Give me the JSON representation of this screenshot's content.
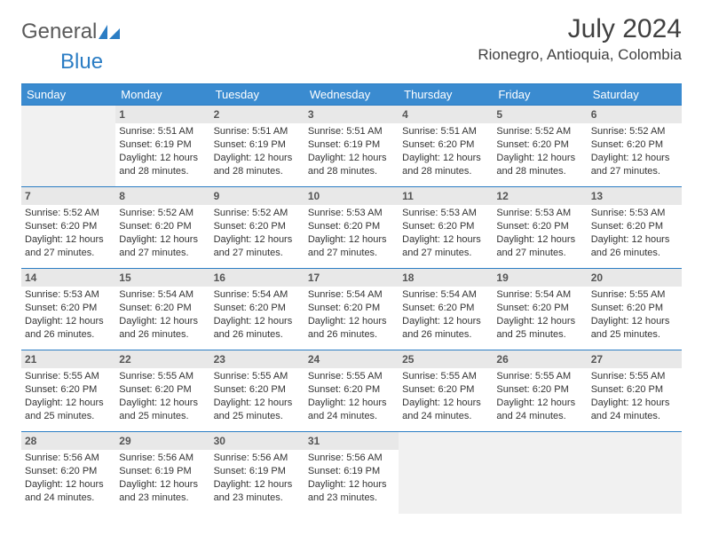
{
  "logo": {
    "general": "General",
    "blue": "Blue"
  },
  "header": {
    "title": "July 2024",
    "location": "Rionegro, Antioquia, Colombia"
  },
  "colors": {
    "accent": "#3a8bd0",
    "border": "#2b7dc4",
    "daybg": "#e8e8e8",
    "blankbg": "#f1f1f1",
    "text": "#333333",
    "title_text": "#404040"
  },
  "daynames": [
    "Sunday",
    "Monday",
    "Tuesday",
    "Wednesday",
    "Thursday",
    "Friday",
    "Saturday"
  ],
  "weeks": [
    [
      null,
      {
        "num": "1",
        "sunrise": "Sunrise: 5:51 AM",
        "sunset": "Sunset: 6:19 PM",
        "day1": "Daylight: 12 hours",
        "day2": "and 28 minutes."
      },
      {
        "num": "2",
        "sunrise": "Sunrise: 5:51 AM",
        "sunset": "Sunset: 6:19 PM",
        "day1": "Daylight: 12 hours",
        "day2": "and 28 minutes."
      },
      {
        "num": "3",
        "sunrise": "Sunrise: 5:51 AM",
        "sunset": "Sunset: 6:19 PM",
        "day1": "Daylight: 12 hours",
        "day2": "and 28 minutes."
      },
      {
        "num": "4",
        "sunrise": "Sunrise: 5:51 AM",
        "sunset": "Sunset: 6:20 PM",
        "day1": "Daylight: 12 hours",
        "day2": "and 28 minutes."
      },
      {
        "num": "5",
        "sunrise": "Sunrise: 5:52 AM",
        "sunset": "Sunset: 6:20 PM",
        "day1": "Daylight: 12 hours",
        "day2": "and 28 minutes."
      },
      {
        "num": "6",
        "sunrise": "Sunrise: 5:52 AM",
        "sunset": "Sunset: 6:20 PM",
        "day1": "Daylight: 12 hours",
        "day2": "and 27 minutes."
      }
    ],
    [
      {
        "num": "7",
        "sunrise": "Sunrise: 5:52 AM",
        "sunset": "Sunset: 6:20 PM",
        "day1": "Daylight: 12 hours",
        "day2": "and 27 minutes."
      },
      {
        "num": "8",
        "sunrise": "Sunrise: 5:52 AM",
        "sunset": "Sunset: 6:20 PM",
        "day1": "Daylight: 12 hours",
        "day2": "and 27 minutes."
      },
      {
        "num": "9",
        "sunrise": "Sunrise: 5:52 AM",
        "sunset": "Sunset: 6:20 PM",
        "day1": "Daylight: 12 hours",
        "day2": "and 27 minutes."
      },
      {
        "num": "10",
        "sunrise": "Sunrise: 5:53 AM",
        "sunset": "Sunset: 6:20 PM",
        "day1": "Daylight: 12 hours",
        "day2": "and 27 minutes."
      },
      {
        "num": "11",
        "sunrise": "Sunrise: 5:53 AM",
        "sunset": "Sunset: 6:20 PM",
        "day1": "Daylight: 12 hours",
        "day2": "and 27 minutes."
      },
      {
        "num": "12",
        "sunrise": "Sunrise: 5:53 AM",
        "sunset": "Sunset: 6:20 PM",
        "day1": "Daylight: 12 hours",
        "day2": "and 27 minutes."
      },
      {
        "num": "13",
        "sunrise": "Sunrise: 5:53 AM",
        "sunset": "Sunset: 6:20 PM",
        "day1": "Daylight: 12 hours",
        "day2": "and 26 minutes."
      }
    ],
    [
      {
        "num": "14",
        "sunrise": "Sunrise: 5:53 AM",
        "sunset": "Sunset: 6:20 PM",
        "day1": "Daylight: 12 hours",
        "day2": "and 26 minutes."
      },
      {
        "num": "15",
        "sunrise": "Sunrise: 5:54 AM",
        "sunset": "Sunset: 6:20 PM",
        "day1": "Daylight: 12 hours",
        "day2": "and 26 minutes."
      },
      {
        "num": "16",
        "sunrise": "Sunrise: 5:54 AM",
        "sunset": "Sunset: 6:20 PM",
        "day1": "Daylight: 12 hours",
        "day2": "and 26 minutes."
      },
      {
        "num": "17",
        "sunrise": "Sunrise: 5:54 AM",
        "sunset": "Sunset: 6:20 PM",
        "day1": "Daylight: 12 hours",
        "day2": "and 26 minutes."
      },
      {
        "num": "18",
        "sunrise": "Sunrise: 5:54 AM",
        "sunset": "Sunset: 6:20 PM",
        "day1": "Daylight: 12 hours",
        "day2": "and 26 minutes."
      },
      {
        "num": "19",
        "sunrise": "Sunrise: 5:54 AM",
        "sunset": "Sunset: 6:20 PM",
        "day1": "Daylight: 12 hours",
        "day2": "and 25 minutes."
      },
      {
        "num": "20",
        "sunrise": "Sunrise: 5:55 AM",
        "sunset": "Sunset: 6:20 PM",
        "day1": "Daylight: 12 hours",
        "day2": "and 25 minutes."
      }
    ],
    [
      {
        "num": "21",
        "sunrise": "Sunrise: 5:55 AM",
        "sunset": "Sunset: 6:20 PM",
        "day1": "Daylight: 12 hours",
        "day2": "and 25 minutes."
      },
      {
        "num": "22",
        "sunrise": "Sunrise: 5:55 AM",
        "sunset": "Sunset: 6:20 PM",
        "day1": "Daylight: 12 hours",
        "day2": "and 25 minutes."
      },
      {
        "num": "23",
        "sunrise": "Sunrise: 5:55 AM",
        "sunset": "Sunset: 6:20 PM",
        "day1": "Daylight: 12 hours",
        "day2": "and 25 minutes."
      },
      {
        "num": "24",
        "sunrise": "Sunrise: 5:55 AM",
        "sunset": "Sunset: 6:20 PM",
        "day1": "Daylight: 12 hours",
        "day2": "and 24 minutes."
      },
      {
        "num": "25",
        "sunrise": "Sunrise: 5:55 AM",
        "sunset": "Sunset: 6:20 PM",
        "day1": "Daylight: 12 hours",
        "day2": "and 24 minutes."
      },
      {
        "num": "26",
        "sunrise": "Sunrise: 5:55 AM",
        "sunset": "Sunset: 6:20 PM",
        "day1": "Daylight: 12 hours",
        "day2": "and 24 minutes."
      },
      {
        "num": "27",
        "sunrise": "Sunrise: 5:55 AM",
        "sunset": "Sunset: 6:20 PM",
        "day1": "Daylight: 12 hours",
        "day2": "and 24 minutes."
      }
    ],
    [
      {
        "num": "28",
        "sunrise": "Sunrise: 5:56 AM",
        "sunset": "Sunset: 6:20 PM",
        "day1": "Daylight: 12 hours",
        "day2": "and 24 minutes."
      },
      {
        "num": "29",
        "sunrise": "Sunrise: 5:56 AM",
        "sunset": "Sunset: 6:19 PM",
        "day1": "Daylight: 12 hours",
        "day2": "and 23 minutes."
      },
      {
        "num": "30",
        "sunrise": "Sunrise: 5:56 AM",
        "sunset": "Sunset: 6:19 PM",
        "day1": "Daylight: 12 hours",
        "day2": "and 23 minutes."
      },
      {
        "num": "31",
        "sunrise": "Sunrise: 5:56 AM",
        "sunset": "Sunset: 6:19 PM",
        "day1": "Daylight: 12 hours",
        "day2": "and 23 minutes."
      },
      null,
      null,
      null
    ]
  ]
}
